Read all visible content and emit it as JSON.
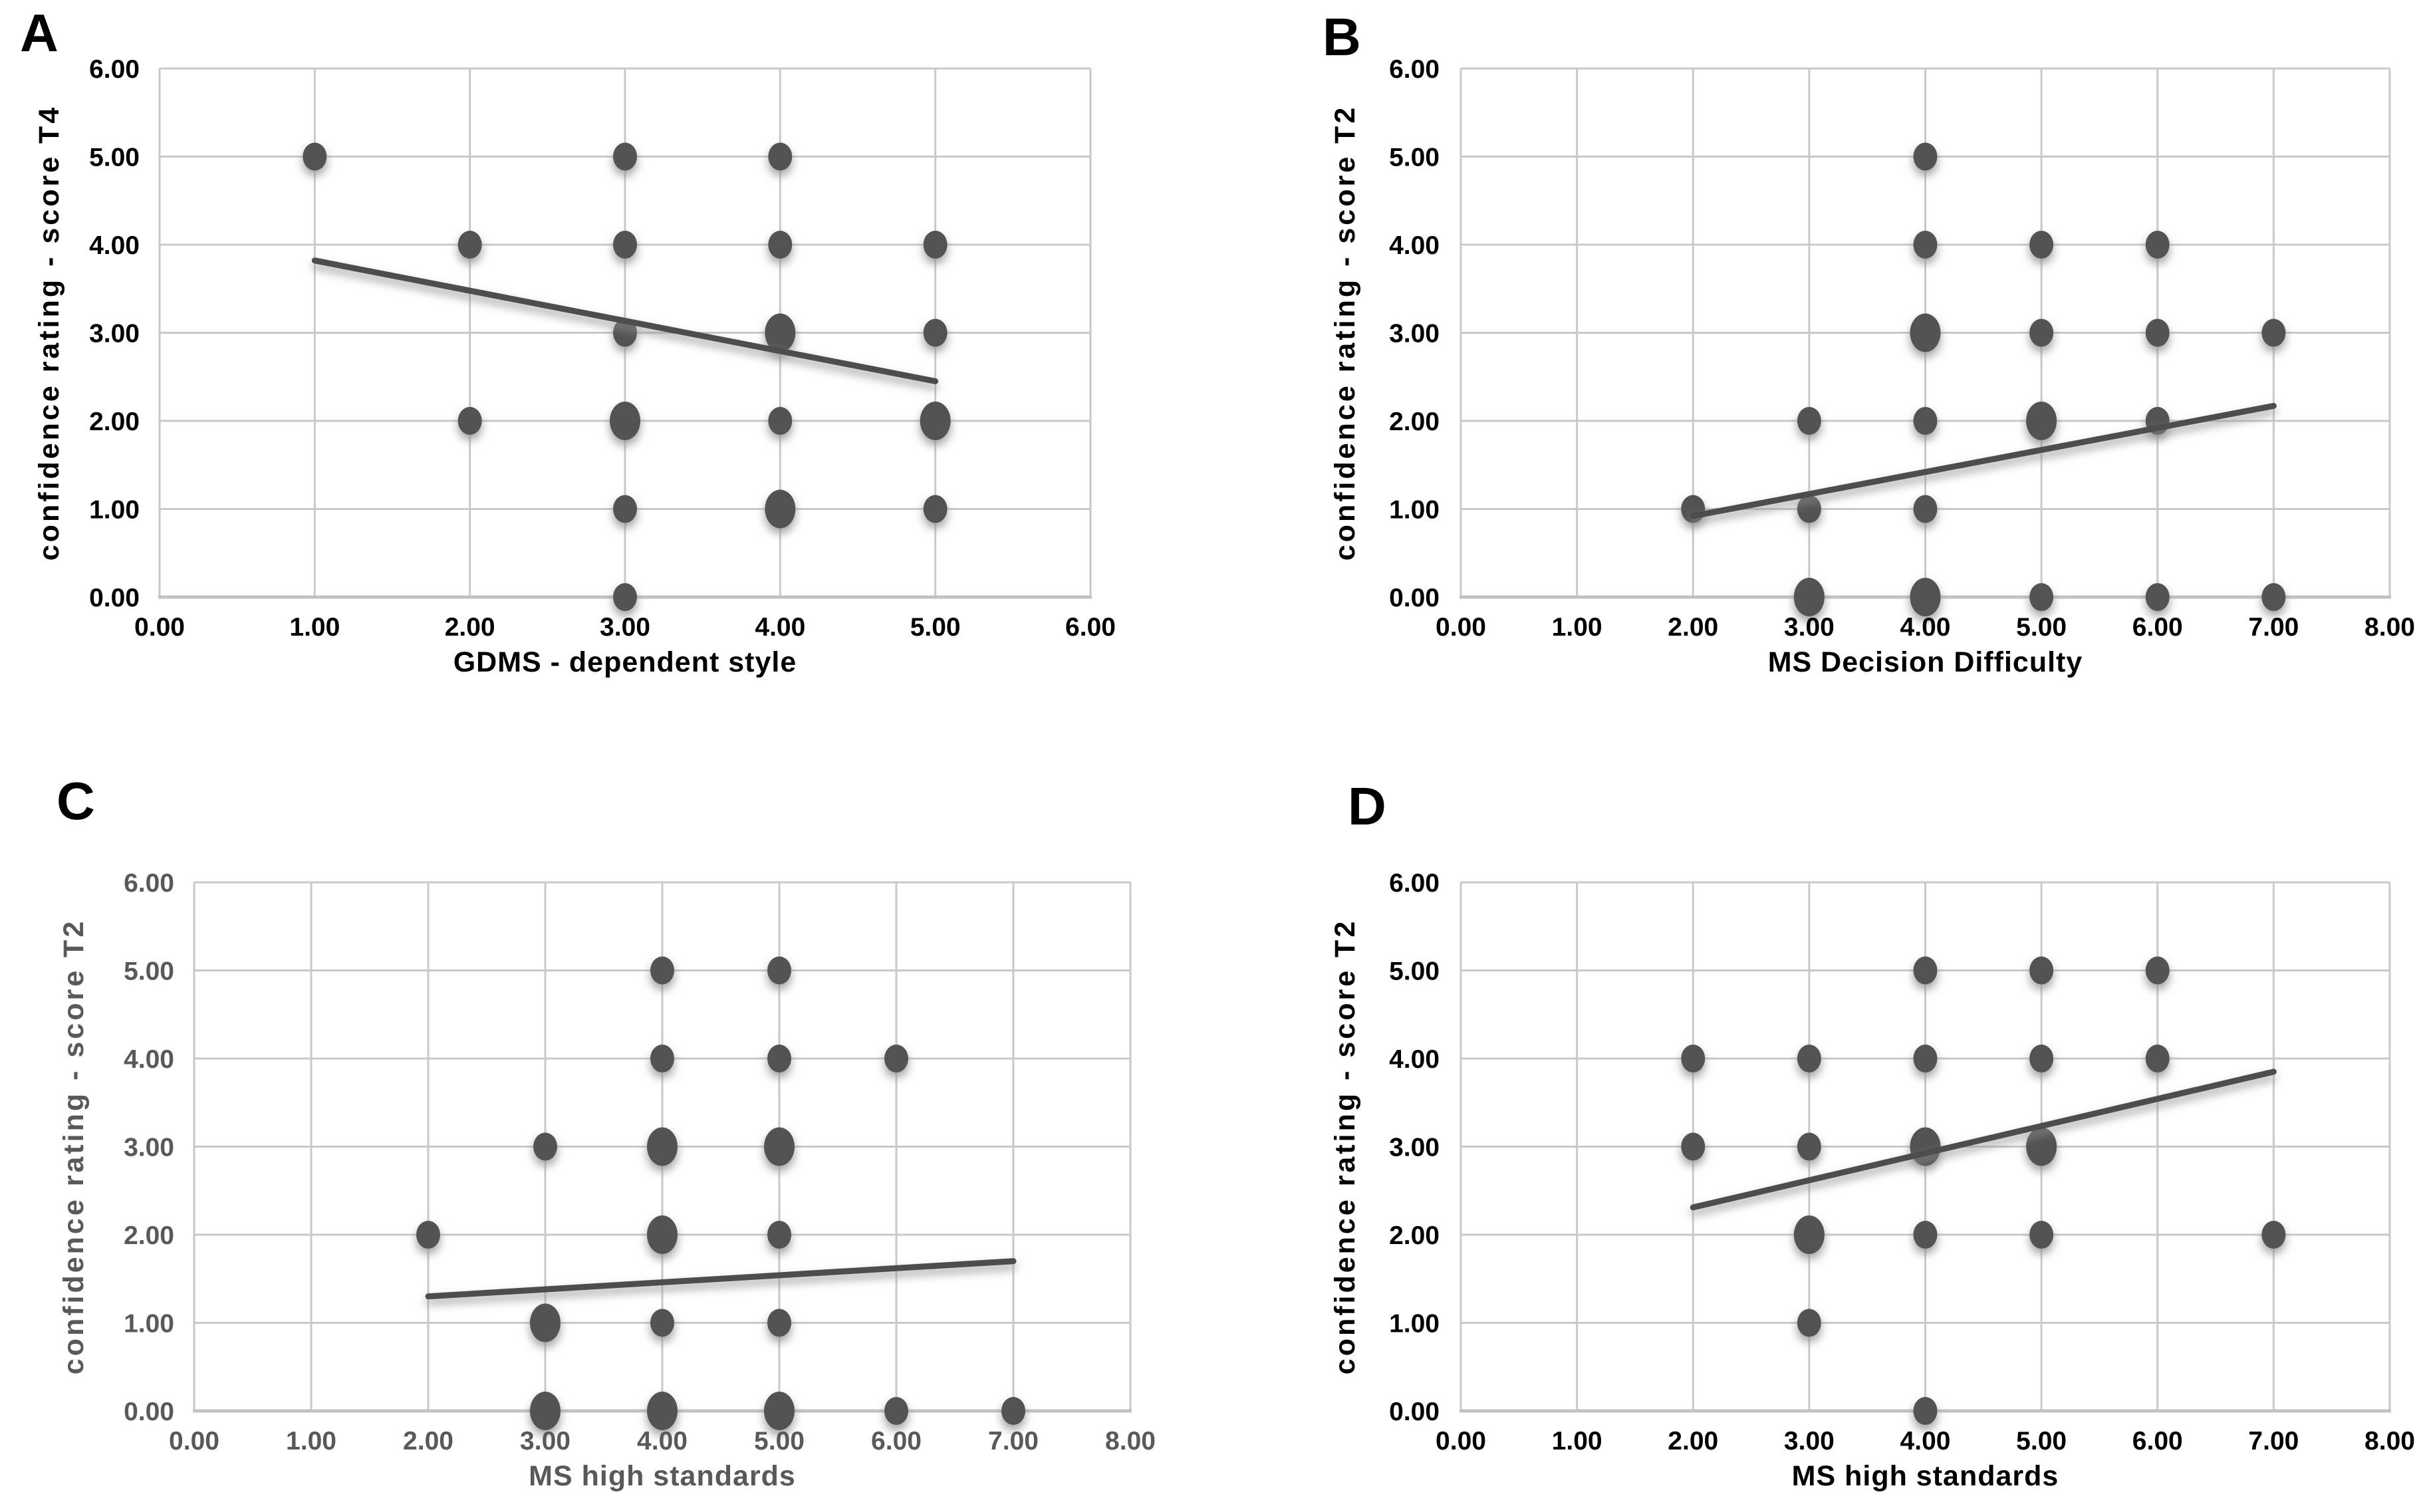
{
  "figure": {
    "background": "#ffffff",
    "description": "Four scatter plots with linear trend lines, panels A-D"
  },
  "style": {
    "marker_color": "#525252",
    "trend_color": "#4d4d4d",
    "grid_color": "#c9c9c9",
    "axis_line_color": "#c2c2c2",
    "default_text_color": "#000000",
    "panel_c_text_color": "#595959"
  },
  "points_format": "[x, y, size] where size 2 = larger overlapping cluster marker",
  "chart_data": [
    {
      "type": "scatter",
      "panel_label": "A",
      "xlabel": "GDMS - dependent style",
      "ylabel": "confidence rating - score T4",
      "xlim": [
        0,
        6
      ],
      "ylim": [
        0,
        6
      ],
      "grid": true,
      "legend": "none",
      "text_color": "#000000",
      "xtick_labels": [
        "0.00",
        "1.00",
        "2.00",
        "3.00",
        "4.00",
        "5.00",
        "6.00"
      ],
      "ytick_labels": [
        "0.00",
        "1.00",
        "2.00",
        "3.00",
        "4.00",
        "5.00",
        "6.00"
      ],
      "points": [
        [
          1,
          5,
          1
        ],
        [
          3,
          5,
          1
        ],
        [
          4,
          5,
          1
        ],
        [
          2,
          4,
          1
        ],
        [
          3,
          4,
          1
        ],
        [
          4,
          4,
          1
        ],
        [
          5,
          4,
          1
        ],
        [
          3,
          3,
          1
        ],
        [
          4,
          3,
          2
        ],
        [
          5,
          3,
          1
        ],
        [
          2,
          2,
          1
        ],
        [
          3,
          2,
          2
        ],
        [
          4,
          2,
          1
        ],
        [
          5,
          2,
          2
        ],
        [
          3,
          1,
          1
        ],
        [
          4,
          1,
          2
        ],
        [
          5,
          1,
          1
        ],
        [
          3,
          0,
          1
        ]
      ],
      "trend": {
        "x1": 1.0,
        "y1": 3.82,
        "x2": 5.0,
        "y2": 2.45
      }
    },
    {
      "type": "scatter",
      "panel_label": "B",
      "xlabel": "MS Decision Difficulty",
      "ylabel": "confidence rating - score T2",
      "xlim": [
        0,
        8
      ],
      "ylim": [
        0,
        6
      ],
      "grid": true,
      "legend": "none",
      "text_color": "#000000",
      "xtick_labels": [
        "0.00",
        "1.00",
        "2.00",
        "3.00",
        "4.00",
        "5.00",
        "6.00",
        "7.00",
        "8.00"
      ],
      "ytick_labels": [
        "0.00",
        "1.00",
        "2.00",
        "3.00",
        "4.00",
        "5.00",
        "6.00"
      ],
      "points": [
        [
          4,
          5,
          1
        ],
        [
          4,
          4,
          1
        ],
        [
          5,
          4,
          1
        ],
        [
          6,
          4,
          1
        ],
        [
          4,
          3,
          2
        ],
        [
          5,
          3,
          1
        ],
        [
          6,
          3,
          1
        ],
        [
          7,
          3,
          1
        ],
        [
          3,
          2,
          1
        ],
        [
          4,
          2,
          1
        ],
        [
          5,
          2,
          2
        ],
        [
          6,
          2,
          1
        ],
        [
          2,
          1,
          1
        ],
        [
          3,
          1,
          1
        ],
        [
          4,
          1,
          1
        ],
        [
          3,
          0,
          2
        ],
        [
          4,
          0,
          2
        ],
        [
          5,
          0,
          1
        ],
        [
          6,
          0,
          1
        ],
        [
          7,
          0,
          1
        ]
      ],
      "trend": {
        "x1": 2.0,
        "y1": 0.92,
        "x2": 7.0,
        "y2": 2.17
      }
    },
    {
      "type": "scatter",
      "panel_label": "C",
      "xlabel": "MS high standards",
      "ylabel": "confidence rating - score T2",
      "xlim": [
        0,
        8
      ],
      "ylim": [
        0,
        6
      ],
      "grid": true,
      "legend": "none",
      "text_color": "#595959",
      "xtick_labels": [
        "0.00",
        "1.00",
        "2.00",
        "3.00",
        "4.00",
        "5.00",
        "6.00",
        "7.00",
        "8.00"
      ],
      "ytick_labels": [
        "0.00",
        "1.00",
        "2.00",
        "3.00",
        "4.00",
        "5.00",
        "6.00"
      ],
      "points": [
        [
          4,
          5,
          1
        ],
        [
          5,
          5,
          1
        ],
        [
          4,
          4,
          1
        ],
        [
          5,
          4,
          1
        ],
        [
          6,
          4,
          1
        ],
        [
          3,
          3,
          1
        ],
        [
          4,
          3,
          2
        ],
        [
          5,
          3,
          2
        ],
        [
          2,
          2,
          1
        ],
        [
          4,
          2,
          2
        ],
        [
          5,
          2,
          1
        ],
        [
          3,
          1,
          2
        ],
        [
          4,
          1,
          1
        ],
        [
          5,
          1,
          1
        ],
        [
          3,
          0,
          2
        ],
        [
          4,
          0,
          2
        ],
        [
          5,
          0,
          2
        ],
        [
          6,
          0,
          1
        ],
        [
          7,
          0,
          1
        ]
      ],
      "trend": {
        "x1": 2.0,
        "y1": 1.3,
        "x2": 7.0,
        "y2": 1.7
      }
    },
    {
      "type": "scatter",
      "panel_label": "D",
      "xlabel": "MS high standards",
      "ylabel": "confidence rating - score T2",
      "xlim": [
        0,
        8
      ],
      "ylim": [
        0,
        6
      ],
      "grid": true,
      "legend": "none",
      "text_color": "#000000",
      "xtick_labels": [
        "0.00",
        "1.00",
        "2.00",
        "3.00",
        "4.00",
        "5.00",
        "6.00",
        "7.00",
        "8.00"
      ],
      "ytick_labels": [
        "0.00",
        "1.00",
        "2.00",
        "3.00",
        "4.00",
        "5.00",
        "6.00"
      ],
      "points": [
        [
          4,
          5,
          1
        ],
        [
          5,
          5,
          1
        ],
        [
          6,
          5,
          1
        ],
        [
          2,
          4,
          1
        ],
        [
          3,
          4,
          1
        ],
        [
          4,
          4,
          1
        ],
        [
          5,
          4,
          1
        ],
        [
          6,
          4,
          1
        ],
        [
          2,
          3,
          1
        ],
        [
          3,
          3,
          1
        ],
        [
          4,
          3,
          2
        ],
        [
          5,
          3,
          2
        ],
        [
          3,
          2,
          2
        ],
        [
          4,
          2,
          1
        ],
        [
          5,
          2,
          1
        ],
        [
          7,
          2,
          1
        ],
        [
          3,
          1,
          1
        ],
        [
          4,
          0,
          1
        ]
      ],
      "trend": {
        "x1": 2.0,
        "y1": 2.31,
        "x2": 7.0,
        "y2": 3.85
      }
    }
  ]
}
